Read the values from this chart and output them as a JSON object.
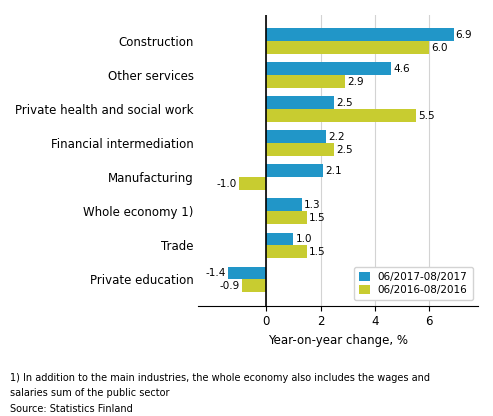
{
  "categories": [
    "Construction",
    "Other services",
    "Private health and social work",
    "Financial intermediation",
    "Manufacturing",
    "Whole economy 1)",
    "Trade",
    "Private education"
  ],
  "series_2017": [
    6.9,
    4.6,
    2.5,
    2.2,
    2.1,
    1.3,
    1.0,
    -1.4
  ],
  "series_2016": [
    6.0,
    2.9,
    5.5,
    2.5,
    -1.0,
    1.5,
    1.5,
    -0.9
  ],
  "color_2017": "#2196c8",
  "color_2016": "#c8cc30",
  "xlabel": "Year-on-year change, %",
  "legend_2017": "06/2017-08/2017",
  "legend_2016": "06/2016-08/2016",
  "footnote1": "1) In addition to the main industries, the whole economy also includes the wages and",
  "footnote2": "salaries sum of the public sector",
  "source": "Source: Statistics Finland",
  "xlim": [
    -2.5,
    7.8
  ],
  "bar_height": 0.38
}
